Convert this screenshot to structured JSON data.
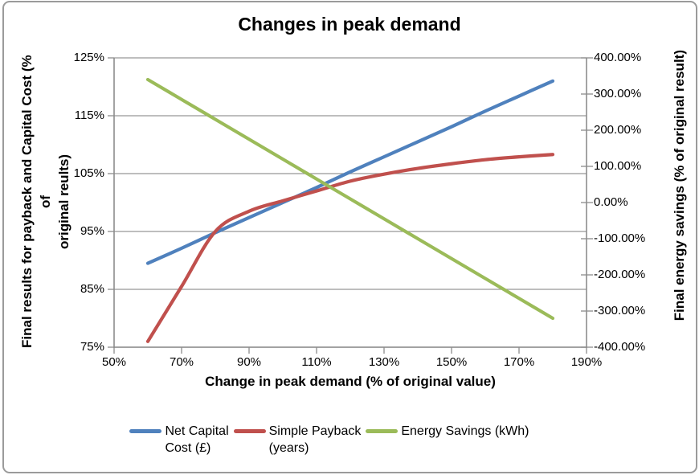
{
  "chart_data": {
    "type": "line",
    "title": "Changes in peak demand",
    "x_axis": {
      "label": "Change in peak demand (% of original value)",
      "min": 50,
      "max": 190,
      "tick_step": 20,
      "tick_labels": [
        "50%",
        "70%",
        "90%",
        "110%",
        "130%",
        "150%",
        "170%",
        "190%"
      ]
    },
    "y_left_axis": {
      "label": "Final results for payback and Capital Cost (% of original reults)",
      "label_lines": [
        "Final results for payback and Capital Cost (% of",
        "original reults)"
      ],
      "min": 75,
      "max": 125,
      "tick_step": 10,
      "tick_labels": [
        "125%",
        "115%",
        "105%",
        "95%",
        "85%",
        "75%"
      ]
    },
    "y_right_axis": {
      "label": "Final energy savings (% of original result)",
      "min": -400,
      "max": 400,
      "tick_step": 100,
      "tick_labels": [
        "400.00%",
        "300.00%",
        "200.00%",
        "100.00%",
        "0.00%",
        "-100.00%",
        "-200.00%",
        "-300.00%",
        "-400.00%"
      ]
    },
    "x": [
      60,
      70,
      80,
      90,
      100,
      110,
      120,
      130,
      140,
      150,
      160,
      170,
      180
    ],
    "series": [
      {
        "name": "Net Capital Cost (£)",
        "legend_label": "Net Capital\nCost (£)",
        "axis": "left",
        "color": "#4F81BD",
        "values": [
          89.5,
          92.1,
          94.8,
          97.4,
          100,
          102.6,
          105.3,
          107.9,
          110.5,
          113.1,
          115.8,
          118.4,
          121
        ]
      },
      {
        "name": "Simple Payback (years)",
        "legend_label": "Simple Payback\n(years)",
        "axis": "left",
        "color": "#C0504D",
        "values": [
          76,
          85.5,
          95,
          98.5,
          100.3,
          102,
          103.7,
          104.9,
          105.9,
          106.7,
          107.4,
          107.9,
          108.3
        ]
      },
      {
        "name": "Energy Savings (kWh)",
        "legend_label": "Energy Savings (kWh)",
        "axis": "right",
        "color": "#9BBB59",
        "values": [
          340,
          285,
          230,
          175,
          120,
          65,
          10,
          -45,
          -100,
          -155,
          -210,
          -265,
          -320
        ]
      }
    ],
    "grid": "horizontal-on",
    "legend_position": "bottom"
  },
  "colors": {
    "axis": "#8C8C8C",
    "grid": "#969696",
    "border": "#9B9B9B",
    "background": "#FFFFFF",
    "text": "#000000"
  }
}
